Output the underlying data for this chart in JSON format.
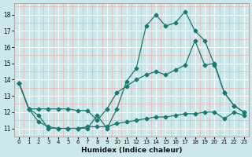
{
  "xlabel": "Humidex (Indice chaleur)",
  "bg_color": "#cce8ea",
  "grid_major_color": "#ffffff",
  "grid_minor_color": "#e8b8b8",
  "line_color": "#1a7a6e",
  "xlim": [
    -0.5,
    23.5
  ],
  "ylim": [
    10.7,
    18.7
  ],
  "yticks": [
    11,
    12,
    13,
    14,
    15,
    16,
    17,
    18
  ],
  "xticks": [
    0,
    1,
    2,
    3,
    4,
    5,
    6,
    7,
    8,
    9,
    10,
    11,
    12,
    13,
    14,
    15,
    16,
    17,
    18,
    19,
    20,
    21,
    22,
    23
  ],
  "series": [
    {
      "x": [
        0,
        1,
        2,
        3,
        4,
        5,
        6,
        7,
        8,
        9,
        10,
        11,
        12,
        13,
        14,
        15,
        16,
        17,
        18,
        19,
        20,
        21,
        22,
        23
      ],
      "y": [
        13.8,
        12.2,
        11.8,
        11.0,
        11.0,
        11.0,
        11.0,
        11.0,
        11.8,
        11.0,
        12.2,
        13.9,
        14.7,
        17.3,
        18.0,
        17.3,
        17.5,
        18.2,
        17.0,
        16.4,
        14.9,
        13.2,
        12.4,
        12.0
      ]
    },
    {
      "x": [
        0,
        1,
        2,
        3,
        4,
        5,
        6,
        7,
        8,
        9,
        10,
        11,
        12,
        13,
        14,
        15,
        16,
        17,
        18,
        19,
        20,
        21,
        22,
        23
      ],
      "y": [
        13.8,
        12.2,
        12.2,
        12.2,
        12.2,
        12.2,
        12.1,
        12.1,
        11.5,
        12.2,
        13.2,
        13.6,
        14.0,
        14.3,
        14.5,
        14.3,
        14.6,
        14.9,
        16.4,
        14.9,
        15.0,
        13.2,
        12.4,
        12.0
      ]
    },
    {
      "x": [
        0,
        1,
        2,
        3,
        4,
        5,
        6,
        7,
        8,
        9,
        10,
        11,
        12,
        13,
        14,
        15,
        16,
        17,
        18,
        19,
        20,
        21,
        22,
        23
      ],
      "y": [
        13.8,
        12.2,
        11.4,
        11.1,
        11.0,
        11.0,
        11.0,
        11.1,
        11.1,
        11.1,
        11.3,
        11.4,
        11.5,
        11.6,
        11.7,
        11.7,
        11.8,
        11.9,
        11.9,
        12.0,
        12.0,
        11.6,
        12.0,
        11.8
      ]
    }
  ]
}
